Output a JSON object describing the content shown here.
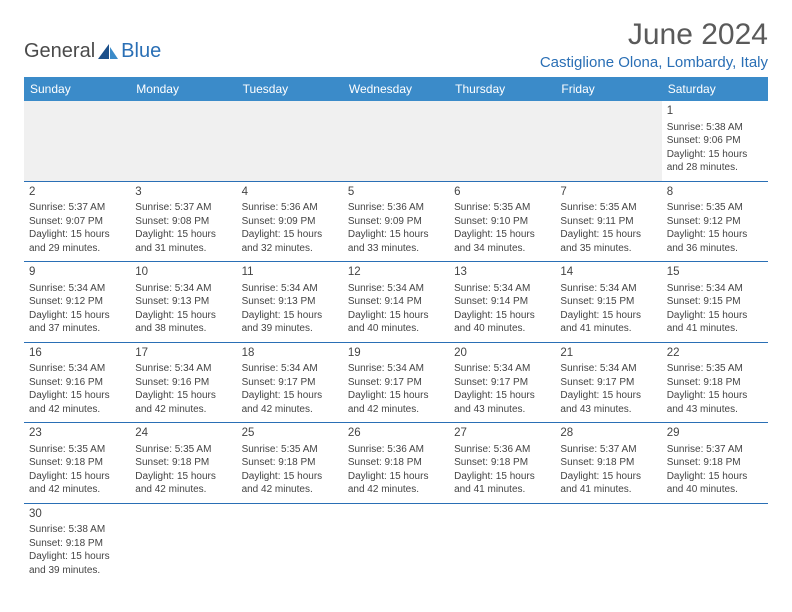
{
  "logo": {
    "text1": "General",
    "text2": "Blue"
  },
  "month_title": "June 2024",
  "location": "Castiglione Olona, Lombardy, Italy",
  "colors": {
    "header_bg": "#3b8bc9",
    "header_text": "#ffffff",
    "border": "#2a6fb5",
    "logo_accent": "#2a6fb5",
    "text": "#444444",
    "empty_bg": "#f0f0f0"
  },
  "day_headers": [
    "Sunday",
    "Monday",
    "Tuesday",
    "Wednesday",
    "Thursday",
    "Friday",
    "Saturday"
  ],
  "weeks": [
    [
      {
        "day": "",
        "lines": []
      },
      {
        "day": "",
        "lines": []
      },
      {
        "day": "",
        "lines": []
      },
      {
        "day": "",
        "lines": []
      },
      {
        "day": "",
        "lines": []
      },
      {
        "day": "",
        "lines": []
      },
      {
        "day": "1",
        "lines": [
          "Sunrise: 5:38 AM",
          "Sunset: 9:06 PM",
          "Daylight: 15 hours",
          "and 28 minutes."
        ]
      }
    ],
    [
      {
        "day": "2",
        "lines": [
          "Sunrise: 5:37 AM",
          "Sunset: 9:07 PM",
          "Daylight: 15 hours",
          "and 29 minutes."
        ]
      },
      {
        "day": "3",
        "lines": [
          "Sunrise: 5:37 AM",
          "Sunset: 9:08 PM",
          "Daylight: 15 hours",
          "and 31 minutes."
        ]
      },
      {
        "day": "4",
        "lines": [
          "Sunrise: 5:36 AM",
          "Sunset: 9:09 PM",
          "Daylight: 15 hours",
          "and 32 minutes."
        ]
      },
      {
        "day": "5",
        "lines": [
          "Sunrise: 5:36 AM",
          "Sunset: 9:09 PM",
          "Daylight: 15 hours",
          "and 33 minutes."
        ]
      },
      {
        "day": "6",
        "lines": [
          "Sunrise: 5:35 AM",
          "Sunset: 9:10 PM",
          "Daylight: 15 hours",
          "and 34 minutes."
        ]
      },
      {
        "day": "7",
        "lines": [
          "Sunrise: 5:35 AM",
          "Sunset: 9:11 PM",
          "Daylight: 15 hours",
          "and 35 minutes."
        ]
      },
      {
        "day": "8",
        "lines": [
          "Sunrise: 5:35 AM",
          "Sunset: 9:12 PM",
          "Daylight: 15 hours",
          "and 36 minutes."
        ]
      }
    ],
    [
      {
        "day": "9",
        "lines": [
          "Sunrise: 5:34 AM",
          "Sunset: 9:12 PM",
          "Daylight: 15 hours",
          "and 37 minutes."
        ]
      },
      {
        "day": "10",
        "lines": [
          "Sunrise: 5:34 AM",
          "Sunset: 9:13 PM",
          "Daylight: 15 hours",
          "and 38 minutes."
        ]
      },
      {
        "day": "11",
        "lines": [
          "Sunrise: 5:34 AM",
          "Sunset: 9:13 PM",
          "Daylight: 15 hours",
          "and 39 minutes."
        ]
      },
      {
        "day": "12",
        "lines": [
          "Sunrise: 5:34 AM",
          "Sunset: 9:14 PM",
          "Daylight: 15 hours",
          "and 40 minutes."
        ]
      },
      {
        "day": "13",
        "lines": [
          "Sunrise: 5:34 AM",
          "Sunset: 9:14 PM",
          "Daylight: 15 hours",
          "and 40 minutes."
        ]
      },
      {
        "day": "14",
        "lines": [
          "Sunrise: 5:34 AM",
          "Sunset: 9:15 PM",
          "Daylight: 15 hours",
          "and 41 minutes."
        ]
      },
      {
        "day": "15",
        "lines": [
          "Sunrise: 5:34 AM",
          "Sunset: 9:15 PM",
          "Daylight: 15 hours",
          "and 41 minutes."
        ]
      }
    ],
    [
      {
        "day": "16",
        "lines": [
          "Sunrise: 5:34 AM",
          "Sunset: 9:16 PM",
          "Daylight: 15 hours",
          "and 42 minutes."
        ]
      },
      {
        "day": "17",
        "lines": [
          "Sunrise: 5:34 AM",
          "Sunset: 9:16 PM",
          "Daylight: 15 hours",
          "and 42 minutes."
        ]
      },
      {
        "day": "18",
        "lines": [
          "Sunrise: 5:34 AM",
          "Sunset: 9:17 PM",
          "Daylight: 15 hours",
          "and 42 minutes."
        ]
      },
      {
        "day": "19",
        "lines": [
          "Sunrise: 5:34 AM",
          "Sunset: 9:17 PM",
          "Daylight: 15 hours",
          "and 42 minutes."
        ]
      },
      {
        "day": "20",
        "lines": [
          "Sunrise: 5:34 AM",
          "Sunset: 9:17 PM",
          "Daylight: 15 hours",
          "and 43 minutes."
        ]
      },
      {
        "day": "21",
        "lines": [
          "Sunrise: 5:34 AM",
          "Sunset: 9:17 PM",
          "Daylight: 15 hours",
          "and 43 minutes."
        ]
      },
      {
        "day": "22",
        "lines": [
          "Sunrise: 5:35 AM",
          "Sunset: 9:18 PM",
          "Daylight: 15 hours",
          "and 43 minutes."
        ]
      }
    ],
    [
      {
        "day": "23",
        "lines": [
          "Sunrise: 5:35 AM",
          "Sunset: 9:18 PM",
          "Daylight: 15 hours",
          "and 42 minutes."
        ]
      },
      {
        "day": "24",
        "lines": [
          "Sunrise: 5:35 AM",
          "Sunset: 9:18 PM",
          "Daylight: 15 hours",
          "and 42 minutes."
        ]
      },
      {
        "day": "25",
        "lines": [
          "Sunrise: 5:35 AM",
          "Sunset: 9:18 PM",
          "Daylight: 15 hours",
          "and 42 minutes."
        ]
      },
      {
        "day": "26",
        "lines": [
          "Sunrise: 5:36 AM",
          "Sunset: 9:18 PM",
          "Daylight: 15 hours",
          "and 42 minutes."
        ]
      },
      {
        "day": "27",
        "lines": [
          "Sunrise: 5:36 AM",
          "Sunset: 9:18 PM",
          "Daylight: 15 hours",
          "and 41 minutes."
        ]
      },
      {
        "day": "28",
        "lines": [
          "Sunrise: 5:37 AM",
          "Sunset: 9:18 PM",
          "Daylight: 15 hours",
          "and 41 minutes."
        ]
      },
      {
        "day": "29",
        "lines": [
          "Sunrise: 5:37 AM",
          "Sunset: 9:18 PM",
          "Daylight: 15 hours",
          "and 40 minutes."
        ]
      }
    ],
    [
      {
        "day": "30",
        "lines": [
          "Sunrise: 5:38 AM",
          "Sunset: 9:18 PM",
          "Daylight: 15 hours",
          "and 39 minutes."
        ]
      },
      {
        "day": "",
        "lines": []
      },
      {
        "day": "",
        "lines": []
      },
      {
        "day": "",
        "lines": []
      },
      {
        "day": "",
        "lines": []
      },
      {
        "day": "",
        "lines": []
      },
      {
        "day": "",
        "lines": []
      }
    ]
  ]
}
